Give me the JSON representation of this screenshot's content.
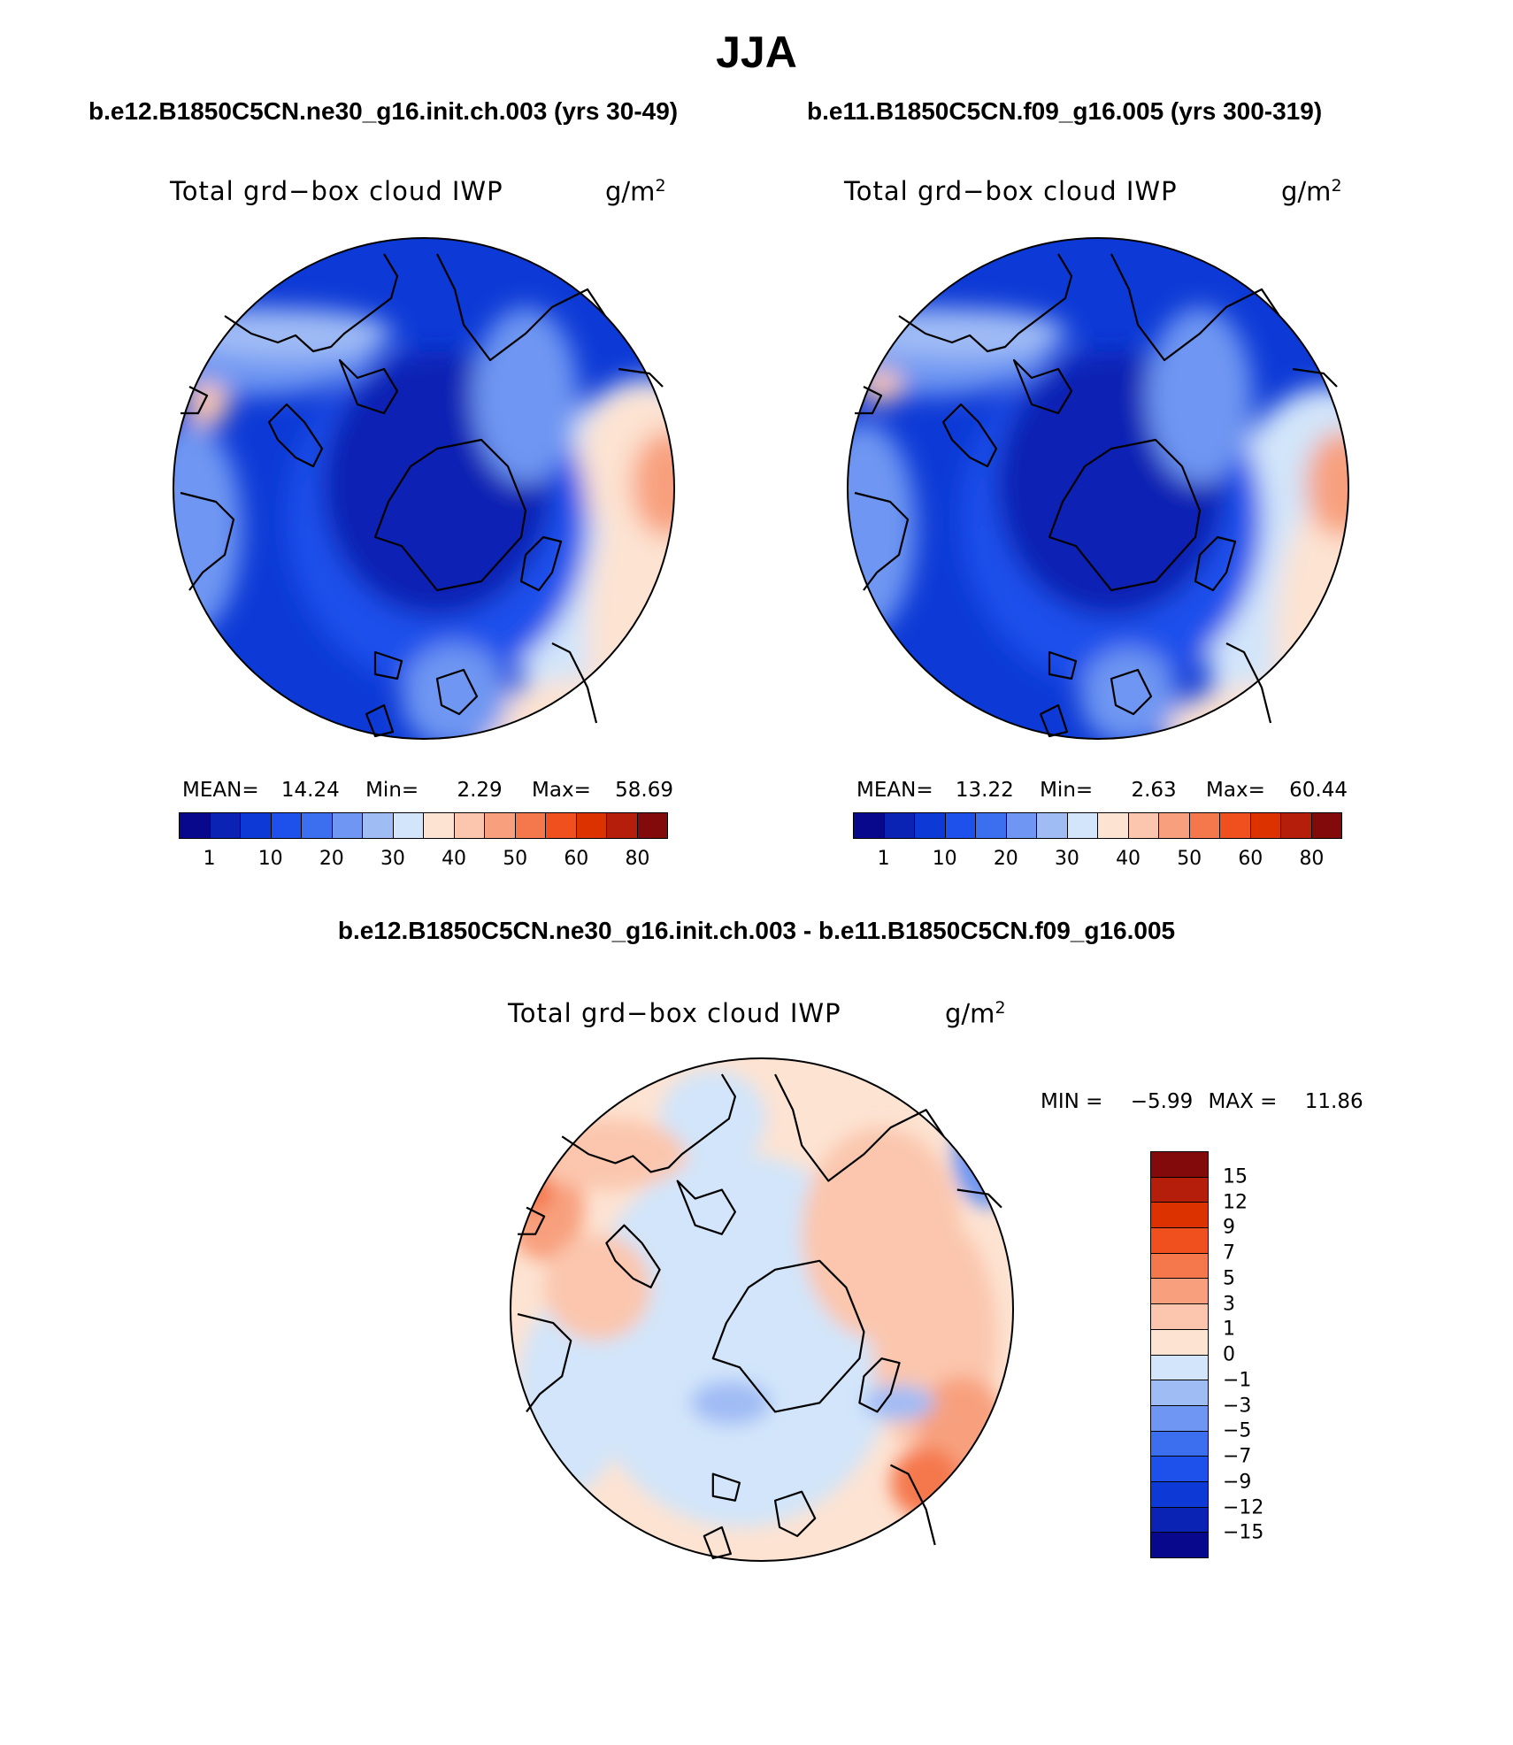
{
  "title": "JJA",
  "panels": [
    {
      "case": "b.e12.B1850C5CN.ne30_g16.init.ch.003 (yrs 30-49)",
      "variable": "Total grd−box cloud IWP",
      "units": "g/m",
      "units_exp": "2",
      "stats": {
        "mean_label": "MEAN=",
        "mean": "14.24",
        "min_label": "Min=",
        "min": "2.29",
        "max_label": "Max=",
        "max": "58.69"
      },
      "field": "warm-south"
    },
    {
      "case": "b.e11.B1850C5CN.f09_g16.005 (yrs 300-319)",
      "variable": "Total grd−box cloud IWP",
      "units": "g/m",
      "units_exp": "2",
      "stats": {
        "mean_label": "MEAN=",
        "mean": "13.22",
        "min_label": "Min=",
        "min": "2.63",
        "max_label": "Max=",
        "max": "60.44"
      },
      "field": "warm-south"
    }
  ],
  "abs_colorbar": {
    "labels": [
      "1",
      "10",
      "20",
      "30",
      "40",
      "50",
      "60",
      "80"
    ],
    "colors": [
      "#08088c",
      "#0a23b4",
      "#0d3ad6",
      "#1e50eb",
      "#3c6ef0",
      "#6e96f2",
      "#a0bcf5",
      "#d2e5fa",
      "#fde3d2",
      "#fbc6ad",
      "#f8a07e",
      "#f5784d",
      "#f0501e",
      "#dc3200",
      "#b41e0a",
      "#820a0a"
    ]
  },
  "diff": {
    "title": "b.e12.B1850C5CN.ne30_g16.init.ch.003 - b.e11.B1850C5CN.f09_g16.005",
    "variable": "Total grd−box cloud IWP",
    "units": "g/m",
    "units_exp": "2",
    "minmax": {
      "min_label": "MIN =",
      "min": "−5.99",
      "max_label": "MAX =",
      "max": "11.86"
    }
  },
  "diff_colorbar": {
    "labels": [
      "15",
      "12",
      "9",
      "7",
      "5",
      "3",
      "1",
      "0",
      "−1",
      "−3",
      "−5",
      "−7",
      "−9",
      "−12",
      "−15"
    ],
    "colors": [
      "#820a0a",
      "#b41e0a",
      "#dc3200",
      "#f0501e",
      "#f5784d",
      "#f8a07e",
      "#fbc6ad",
      "#fde3d2",
      "#d2e5fa",
      "#a0bcf5",
      "#6e96f2",
      "#3c6ef0",
      "#1e50eb",
      "#0d3ad6",
      "#0a23b4",
      "#08088c"
    ]
  },
  "map_colors": {
    "deep": "#0a23b4",
    "blue": "#0d3ad6",
    "mid": "#1e50eb",
    "light": "#6e96f2",
    "pale": "#a0bcf5",
    "ice": "#d2e5fa",
    "peach": "#fde3d2",
    "salmon": "#fbc6ad",
    "orange": "#f8a07e",
    "red": "#f5784d",
    "dark": "#dc3200"
  }
}
